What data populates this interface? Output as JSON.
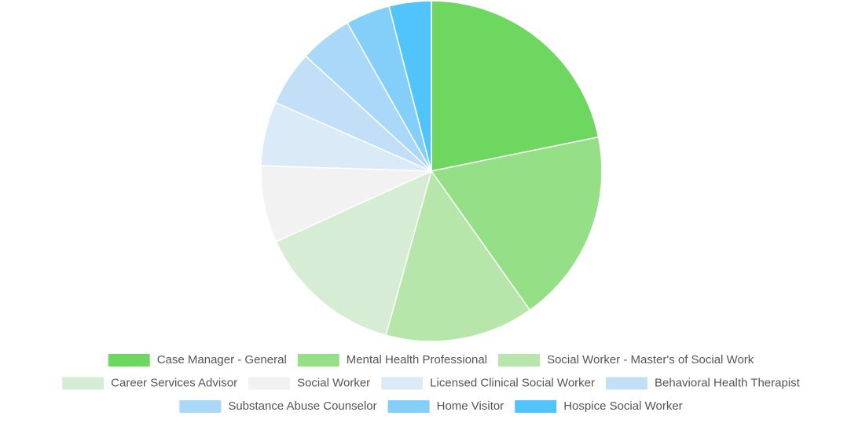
{
  "chart_data": {
    "type": "pie",
    "categories": [
      "Case Manager - General",
      "Mental Health Professional",
      "Social Worker - Master's of Social Work",
      "Career Services Advisor",
      "Social Worker",
      "Licensed Clinical Social Worker",
      "Behavioral Health Therapist",
      "Substance Abuse Counselor",
      "Home Visitor",
      "Hospice Social Worker"
    ],
    "values": [
      21.8,
      18.4,
      14.1,
      13.9,
      7.3,
      6.1,
      5.2,
      5.0,
      4.2,
      4.0
    ],
    "colors": [
      "#6dd75f",
      "#95df87",
      "#b6e6a9",
      "#d7ecd4",
      "#f2f2f2",
      "#dbeaf7",
      "#c2dff7",
      "#a9d8f8",
      "#84cff9",
      "#52c4fc"
    ],
    "legend": "bottom"
  }
}
